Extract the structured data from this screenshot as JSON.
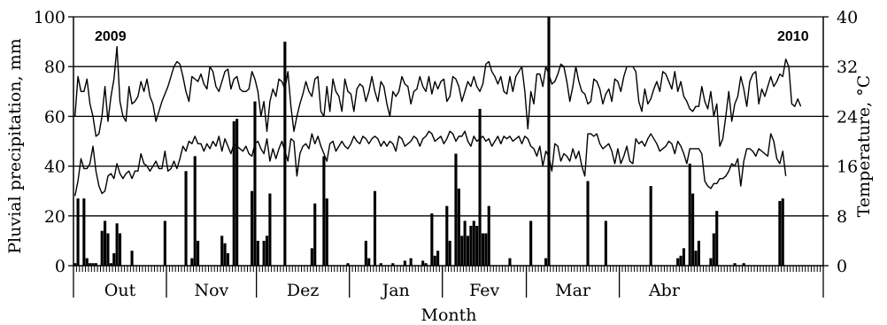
{
  "chart_data": {
    "type": "bar",
    "xlabel": "Month",
    "ylabel": "Pluvial precipitation, mm",
    "y2label": "Temperature, °C",
    "ylim": [
      0,
      100
    ],
    "y2lim": [
      0,
      40
    ],
    "yticks": [
      0,
      20,
      40,
      60,
      80,
      100
    ],
    "y2ticks": [
      0,
      8,
      16,
      24,
      32,
      40
    ],
    "grid": "horizontal",
    "annotations": [
      {
        "text": "2009",
        "position": "top-left"
      },
      {
        "text": "2010",
        "position": "top-right"
      }
    ],
    "months": [
      "Out",
      "Nov",
      "Dez",
      "Jan",
      "Fev",
      "Mar",
      "Abr"
    ],
    "month_days": [
      31,
      30,
      31,
      31,
      28,
      31,
      30
    ],
    "series": [
      {
        "type": "bar",
        "axis": "left",
        "values": [
          1,
          27,
          0,
          27,
          3,
          1,
          1,
          1,
          0,
          14,
          18,
          13,
          1,
          5,
          17,
          13,
          0,
          0,
          0,
          6,
          0,
          0,
          0,
          0,
          0,
          0,
          0,
          0,
          0,
          0,
          18,
          0,
          0,
          0,
          0,
          0,
          0,
          38,
          0,
          3,
          44,
          10,
          0,
          0,
          0,
          0,
          0,
          0,
          0,
          12,
          9,
          5,
          0,
          58,
          59,
          0,
          0,
          0,
          0,
          30,
          66,
          10,
          0,
          10,
          12,
          29,
          0,
          0,
          0,
          0,
          90,
          0,
          0,
          0,
          0,
          0,
          0,
          0,
          0,
          7,
          25,
          0,
          0,
          44,
          27,
          0,
          0,
          0,
          0,
          0,
          0,
          1,
          0,
          0,
          0,
          0,
          0,
          10,
          3,
          0,
          30,
          0,
          1,
          0,
          0,
          0,
          1,
          0,
          0,
          0,
          2,
          0,
          3,
          0,
          0,
          0,
          2,
          1,
          0,
          21,
          4,
          6,
          0,
          0,
          24,
          10,
          0,
          45,
          31,
          12,
          18,
          12,
          16,
          18,
          16,
          63,
          13,
          13,
          24,
          0,
          0,
          0,
          0,
          0,
          0,
          3,
          0,
          0,
          0,
          0,
          0,
          0,
          18,
          0,
          0,
          0,
          0,
          3,
          100,
          0,
          0,
          0,
          0,
          0,
          0,
          0,
          0,
          0,
          0,
          0,
          0,
          34,
          0,
          0,
          0,
          0,
          0,
          18,
          0,
          0,
          0,
          0,
          0,
          0,
          0,
          0,
          0,
          0,
          0,
          0,
          0,
          0,
          32,
          0,
          0,
          0,
          0,
          0,
          0,
          0,
          0,
          3,
          4,
          7,
          0,
          41,
          29,
          6,
          10,
          0,
          0,
          0,
          3,
          13,
          22,
          0,
          0,
          0,
          0,
          0,
          1,
          0,
          0,
          1,
          0,
          0,
          0,
          0,
          0,
          0,
          0,
          0,
          0,
          0,
          0,
          26,
          27,
          0,
          0,
          0,
          0,
          0,
          0,
          0,
          0,
          0,
          0,
          0,
          0,
          0
        ]
      },
      {
        "type": "line",
        "axis": "right",
        "name": "",
        "values": [
          24,
          30.4,
          28,
          28,
          30,
          26,
          24,
          20.8,
          21.2,
          24,
          28.8,
          23.2,
          27.2,
          30,
          35.2,
          26.4,
          24,
          23.2,
          28.8,
          26,
          26.4,
          27.2,
          29.6,
          28,
          30,
          27.2,
          26,
          23.2,
          24.8,
          26.4,
          27.6,
          28.8,
          30.4,
          32,
          32.8,
          32.4,
          30.4,
          28,
          26.4,
          30.4,
          30,
          29.6,
          30.8,
          29.2,
          28.4,
          32,
          31.2,
          28.8,
          28,
          29.6,
          31.2,
          31.6,
          28.4,
          30,
          30.4,
          28.4,
          28,
          28,
          28.4,
          31.2,
          30,
          28,
          24,
          26.4,
          21.6,
          26.4,
          28.4,
          27.2,
          30,
          29.6,
          28.4,
          31.2,
          25.6,
          21.6,
          24,
          26,
          27.6,
          29.6,
          28,
          27.2,
          30,
          30.4,
          24.8,
          24,
          28.8,
          24.8,
          30,
          28,
          27.2,
          24.8,
          30,
          28,
          27.6,
          24.8,
          28.4,
          29.2,
          28.8,
          26.4,
          28,
          30.4,
          28,
          26.4,
          29.6,
          28.8,
          26,
          24,
          28,
          27.2,
          28,
          30.4,
          29.2,
          28.8,
          26,
          28,
          28.4,
          30.4,
          28.8,
          28,
          30.4,
          27.6,
          29.6,
          28.4,
          29.6,
          30,
          26.4,
          27.2,
          30.4,
          30,
          28.8,
          26.4,
          28,
          29.6,
          28.8,
          30.4,
          28.8,
          28,
          29.2,
          32.4,
          32.8,
          31.2,
          30.4,
          29.2,
          30.4,
          28,
          27.6,
          30.4,
          28,
          30.4,
          31.2,
          32,
          28,
          22,
          28,
          26,
          30.8,
          30.8,
          28.8,
          32,
          30.8,
          29.2,
          29.6,
          30.8,
          32.4,
          32,
          29.6,
          26.4,
          28.8,
          32,
          29.6,
          28,
          27.6,
          26,
          26.4,
          30,
          29.6,
          28.4,
          26,
          27.6,
          28.4,
          26.4,
          30,
          29.6,
          28,
          30.4,
          32,
          32,
          32,
          31.2,
          26.4,
          24.8,
          28.4,
          26,
          26.8,
          28.4,
          29.6,
          28,
          31.2,
          30.8,
          29.6,
          28.4,
          31.2,
          28,
          29.6,
          27.2,
          26.4,
          25.2,
          24.8,
          25.6,
          25.6,
          28.8,
          26.4,
          25.2,
          28,
          24,
          26,
          19.2,
          20.4,
          24,
          28,
          23.2,
          26,
          27.2,
          30.4,
          28.4,
          25.6,
          29.6,
          30.8,
          31.2,
          26,
          28.4,
          27.2,
          28.8,
          30.4,
          28.8,
          29.6,
          30.8,
          30.4,
          33.2,
          32,
          26,
          25.6,
          26.8,
          25.6
        ]
      },
      {
        "type": "line",
        "axis": "right",
        "name": "",
        "values": [
          11.2,
          13.6,
          17.2,
          15.6,
          15.6,
          16.4,
          19.2,
          15.2,
          12.8,
          11.6,
          12,
          14.4,
          14.8,
          14,
          16.4,
          14.8,
          14,
          14.8,
          15.2,
          14,
          15.2,
          15.2,
          18,
          16.4,
          16,
          15.2,
          16,
          16.8,
          15.6,
          15.6,
          18.4,
          15.2,
          15.6,
          16.8,
          15.6,
          17.2,
          19.2,
          18.4,
          20,
          19.6,
          20.8,
          19.6,
          19.6,
          18.4,
          19.6,
          18.8,
          20,
          19.2,
          20.8,
          18.4,
          20.4,
          19.2,
          18,
          19.6,
          19.2,
          18.8,
          18.4,
          19.2,
          18,
          17.6,
          19.6,
          20,
          18.8,
          18,
          20.4,
          16.8,
          18.8,
          17.2,
          18.8,
          20,
          18.4,
          16.8,
          20.4,
          20,
          14.4,
          18,
          19.2,
          19.6,
          18.8,
          21.2,
          19.6,
          20.8,
          19.2,
          18,
          16.8,
          19.6,
          20,
          18.4,
          19.2,
          20,
          19.2,
          18.8,
          19.6,
          20.8,
          20,
          19.6,
          20.8,
          20.4,
          19.6,
          20.4,
          20.8,
          20.4,
          19.2,
          20,
          19.2,
          20,
          19.6,
          18.4,
          20.8,
          20.4,
          19.2,
          19.6,
          20,
          20.8,
          20.4,
          19.2,
          20.4,
          20.8,
          21.6,
          21.2,
          20,
          20.4,
          20.8,
          19.6,
          20.4,
          21.6,
          21.2,
          20,
          20.8,
          20.8,
          21.6,
          20,
          19.2,
          20.8,
          20,
          20.4,
          20.8,
          20,
          20.4,
          19.2,
          20,
          20.8,
          19.6,
          20.8,
          20.4,
          20.8,
          20,
          20.4,
          20.8,
          19.6,
          20.8,
          20.4,
          19.2,
          18.8,
          17.6,
          19.2,
          16,
          18.4,
          17.6,
          15.2,
          19.6,
          19.2,
          16.8,
          18,
          17.6,
          16.8,
          18.8,
          17.2,
          18.4,
          16,
          14.4,
          21.2,
          21.2,
          20.8,
          21.2,
          19.6,
          18.8,
          19.2,
          19.6,
          18.4,
          16.4,
          18.8,
          16.4,
          17.6,
          19.2,
          16.8,
          16.4,
          20.4,
          19.6,
          20,
          19.2,
          20.4,
          21.2,
          20.4,
          19.6,
          18.4,
          18.8,
          19.2,
          20,
          19.6,
          18,
          20,
          19.2,
          18,
          16.4,
          18.8,
          18.8,
          18.8,
          18.8,
          18,
          13.6,
          12.8,
          12.4,
          13.2,
          13.2,
          14,
          14,
          14.4,
          15.2,
          16.4,
          16,
          17.2,
          12.8,
          16.8,
          18.8,
          18.8,
          18.4,
          17.6,
          18.8,
          18.4,
          18,
          17.6,
          21.2,
          20,
          17.2,
          16.4,
          18.4,
          14.4
        ]
      }
    ]
  }
}
